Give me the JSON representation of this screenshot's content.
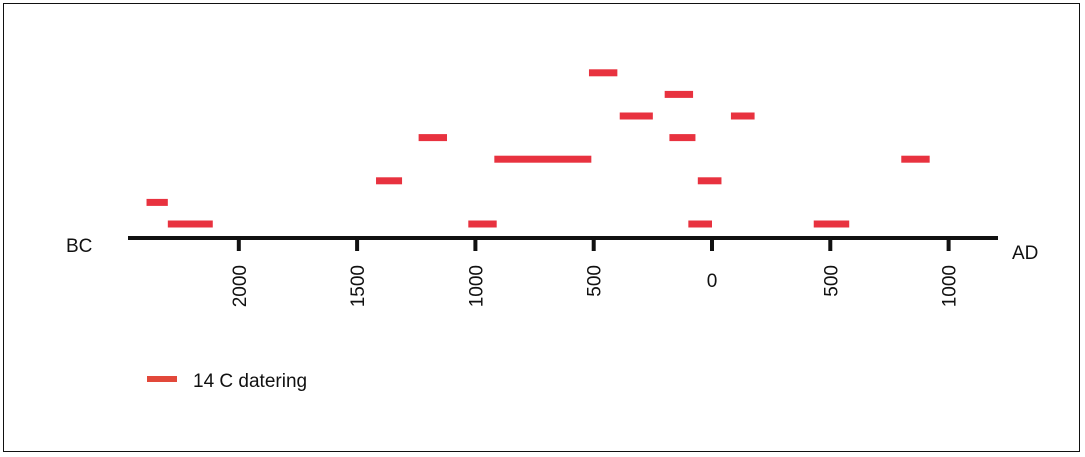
{
  "chart_data": {
    "type": "timeline",
    "axis": {
      "left_label": "BC",
      "right_label": "AD",
      "range": [
        -2450,
        1050
      ],
      "ticks": [
        {
          "value": -2000,
          "label": "2000"
        },
        {
          "value": -1500,
          "label": "1500"
        },
        {
          "value": -1000,
          "label": "1000"
        },
        {
          "value": -500,
          "label": "500"
        },
        {
          "value": 0,
          "label": "0"
        },
        {
          "value": 500,
          "label": "500"
        },
        {
          "value": 1000,
          "label": "1000"
        }
      ]
    },
    "series": [
      {
        "name": "14 C datering",
        "color": "#e8323f",
        "ranges": [
          {
            "start": -2390,
            "end": -2300,
            "level": 1
          },
          {
            "start": -2300,
            "end": -2110,
            "level": 0
          },
          {
            "start": -1420,
            "end": -1310,
            "level": 2
          },
          {
            "start": -1240,
            "end": -1120,
            "level": 4
          },
          {
            "start": -1030,
            "end": -910,
            "level": 0
          },
          {
            "start": -920,
            "end": -510,
            "level": 3
          },
          {
            "start": -520,
            "end": -400,
            "level": 7
          },
          {
            "start": -390,
            "end": -250,
            "level": 5
          },
          {
            "start": -200,
            "end": -80,
            "level": 6
          },
          {
            "start": -180,
            "end": -70,
            "level": 4
          },
          {
            "start": -100,
            "end": 0,
            "level": 0
          },
          {
            "start": -60,
            "end": 40,
            "level": 2
          },
          {
            "start": 80,
            "end": 180,
            "level": 5
          },
          {
            "start": 430,
            "end": 580,
            "level": 0
          },
          {
            "start": 800,
            "end": 920,
            "level": 3
          }
        ]
      }
    ],
    "legend": {
      "label": "14 C datering",
      "placement": "bottom-left"
    }
  }
}
